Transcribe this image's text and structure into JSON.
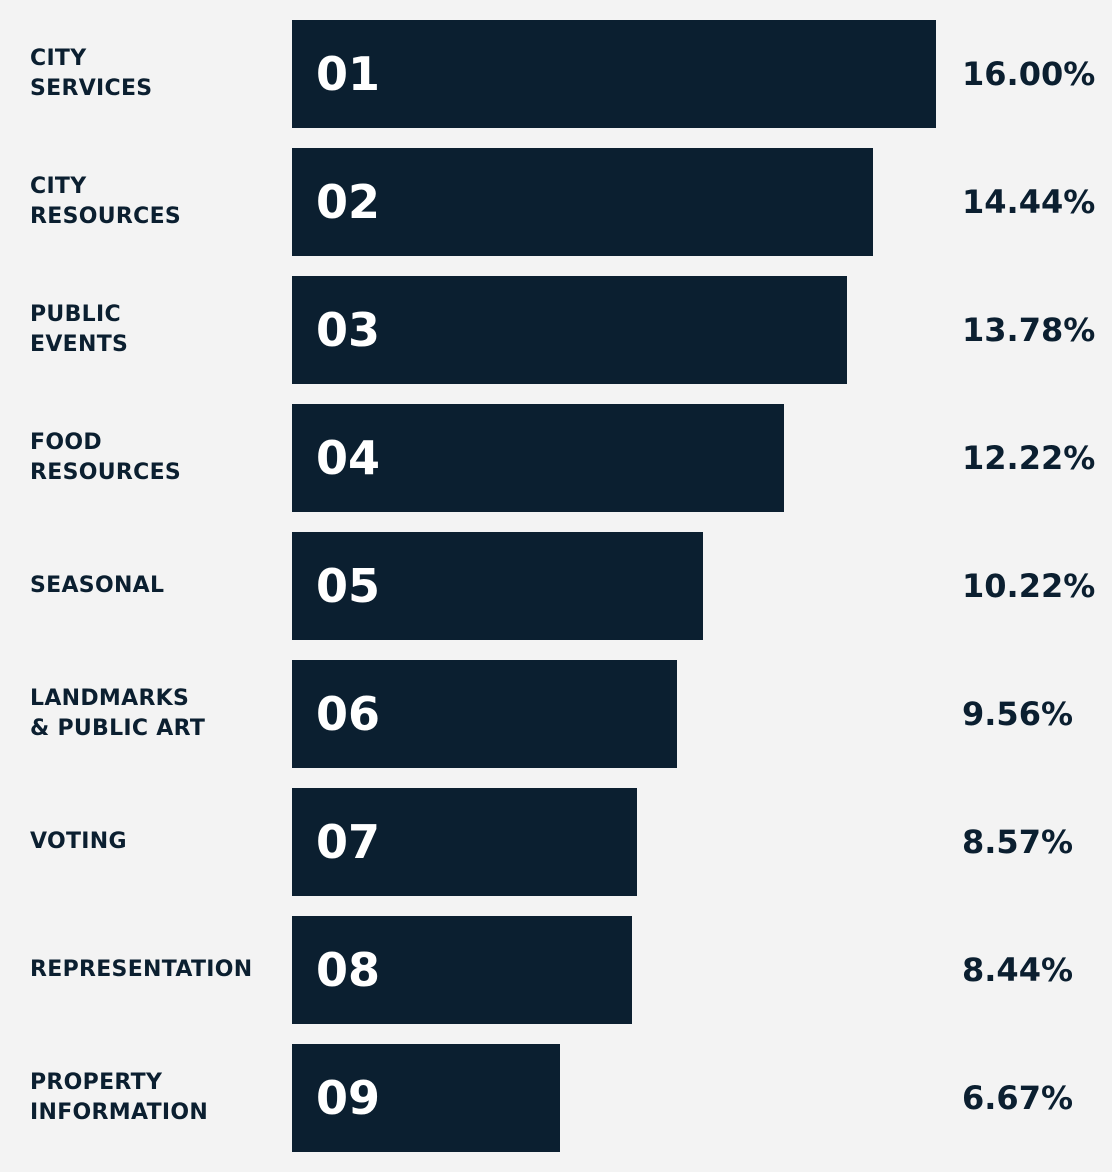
{
  "chart_data": {
    "type": "bar",
    "orientation": "horizontal",
    "categories": [
      [
        "CITY",
        "SERVICES"
      ],
      [
        "CITY",
        "RESOURCES"
      ],
      [
        "PUBLIC",
        "EVENTS"
      ],
      [
        "FOOD",
        "RESOURCES"
      ],
      [
        "SEASONAL"
      ],
      [
        "LANDMARKS",
        "& PUBLIC ART"
      ],
      [
        "VOTING"
      ],
      [
        "REPRESENTATION"
      ],
      [
        "PROPERTY",
        "INFORMATION"
      ]
    ],
    "ranks": [
      "01",
      "02",
      "03",
      "04",
      "05",
      "06",
      "07",
      "08",
      "09"
    ],
    "values": [
      16.0,
      14.44,
      13.78,
      12.22,
      10.22,
      9.56,
      8.57,
      8.44,
      6.67
    ],
    "value_labels": [
      "16.00%",
      "14.44%",
      "13.78%",
      "12.22%",
      "10.22%",
      "9.56%",
      "8.57%",
      "8.44%",
      "6.67%"
    ],
    "grid": false,
    "legend": "none",
    "colors": {
      "bar": "#0b1f30",
      "background": "#f3f3f3",
      "text": "#0b1f30",
      "rank_text": "#ffffff"
    }
  }
}
